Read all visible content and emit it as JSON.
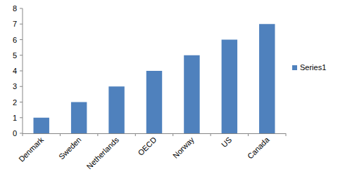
{
  "chart_data": {
    "type": "bar",
    "categories": [
      "Denmark",
      "Sweden",
      "Netherlands",
      "OECD",
      "Norway",
      "US",
      "Canada"
    ],
    "series": [
      {
        "name": "Series1",
        "color": "#4f81bd",
        "values": [
          1,
          2,
          3,
          4,
          5,
          6,
          7
        ]
      }
    ],
    "ylim": [
      0,
      8
    ],
    "yticks": [
      0,
      1,
      2,
      3,
      4,
      5,
      6,
      7,
      8
    ],
    "grid": false,
    "legend": "right"
  }
}
